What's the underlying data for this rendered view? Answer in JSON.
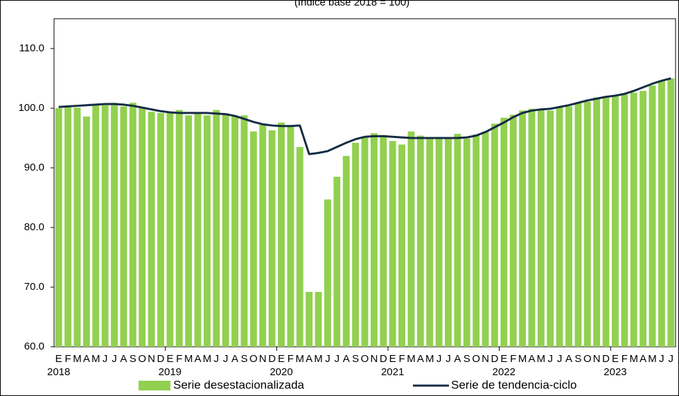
{
  "chart_data": {
    "type": "bar",
    "subtitle": "(Índice base 2018 = 100)",
    "categories": [
      "E",
      "F",
      "M",
      "A",
      "M",
      "J",
      "J",
      "A",
      "S",
      "O",
      "N",
      "D",
      "E",
      "F",
      "M",
      "A",
      "M",
      "J",
      "J",
      "A",
      "S",
      "O",
      "N",
      "D",
      "E",
      "F",
      "M",
      "A",
      "M",
      "J",
      "J",
      "A",
      "S",
      "O",
      "N",
      "D",
      "E",
      "F",
      "M",
      "A",
      "M",
      "J",
      "J",
      "A",
      "S",
      "O",
      "N",
      "D",
      "E",
      "F",
      "M",
      "A",
      "M",
      "J",
      "J",
      "A",
      "S",
      "O",
      "N",
      "D",
      "E",
      "F",
      "M",
      "A",
      "M",
      "J",
      "J"
    ],
    "years": [
      "2018",
      null,
      null,
      null,
      null,
      null,
      null,
      null,
      null,
      null,
      null,
      null,
      "2019",
      null,
      null,
      null,
      null,
      null,
      null,
      null,
      null,
      null,
      null,
      null,
      "2020",
      null,
      null,
      null,
      null,
      null,
      null,
      null,
      null,
      null,
      null,
      null,
      "2021",
      null,
      null,
      null,
      null,
      null,
      null,
      null,
      null,
      null,
      null,
      null,
      "2022",
      null,
      null,
      null,
      null,
      null,
      null,
      null,
      null,
      null,
      null,
      null,
      "2023",
      null,
      null,
      null,
      null,
      null,
      null
    ],
    "series": [
      {
        "name": "Serie desestacionalizada",
        "type": "bar",
        "color": "#92d050",
        "values": [
          100.0,
          100.2,
          100.1,
          98.6,
          100.5,
          100.5,
          100.9,
          100.3,
          100.9,
          100.0,
          99.4,
          99.2,
          99.3,
          99.7,
          98.8,
          99.3,
          98.8,
          99.7,
          99.1,
          98.7,
          98.8,
          96.1,
          97.2,
          96.3,
          97.6,
          97.0,
          93.5,
          69.2,
          69.2,
          84.7,
          88.5,
          92.0,
          94.2,
          95.1,
          95.8,
          95.5,
          94.5,
          93.9,
          96.1,
          95.4,
          95.0,
          95.0,
          95.1,
          95.7,
          94.9,
          95.6,
          96.1,
          97.4,
          98.4,
          98.9,
          99.6,
          99.9,
          99.7,
          99.6,
          100.1,
          100.3,
          100.9,
          101.1,
          101.8,
          101.9,
          102.2,
          102.3,
          102.6,
          102.9,
          103.8,
          104.6,
          105.0
        ]
      },
      {
        "name": "Serie de tendencia-ciclo",
        "type": "line",
        "color": "#142c45",
        "values": [
          100.2,
          100.3,
          100.4,
          100.5,
          100.6,
          100.7,
          100.7,
          100.6,
          100.4,
          100.1,
          99.8,
          99.5,
          99.3,
          99.2,
          99.2,
          99.2,
          99.2,
          99.1,
          99.0,
          98.7,
          98.2,
          97.7,
          97.3,
          97.1,
          97.0,
          97.0,
          97.1,
          92.3,
          92.5,
          92.8,
          93.5,
          94.2,
          94.8,
          95.2,
          95.3,
          95.3,
          95.2,
          95.1,
          95.0,
          95.0,
          95.0,
          95.0,
          95.0,
          95.0,
          95.1,
          95.4,
          96.0,
          96.8,
          97.6,
          98.5,
          99.2,
          99.6,
          99.8,
          99.9,
          100.2,
          100.5,
          100.9,
          101.3,
          101.6,
          101.9,
          102.1,
          102.4,
          102.9,
          103.5,
          104.1,
          104.6,
          105.0
        ]
      }
    ],
    "ylim": [
      60,
      115
    ],
    "yticks": [
      {
        "value": 60,
        "label": "60.0"
      },
      {
        "value": 70,
        "label": "70.0"
      },
      {
        "value": 80,
        "label": "80.0"
      },
      {
        "value": 90,
        "label": "90.0"
      },
      {
        "value": 100,
        "label": "100.0"
      },
      {
        "value": 110,
        "label": "110.0"
      }
    ],
    "grid": false
  }
}
